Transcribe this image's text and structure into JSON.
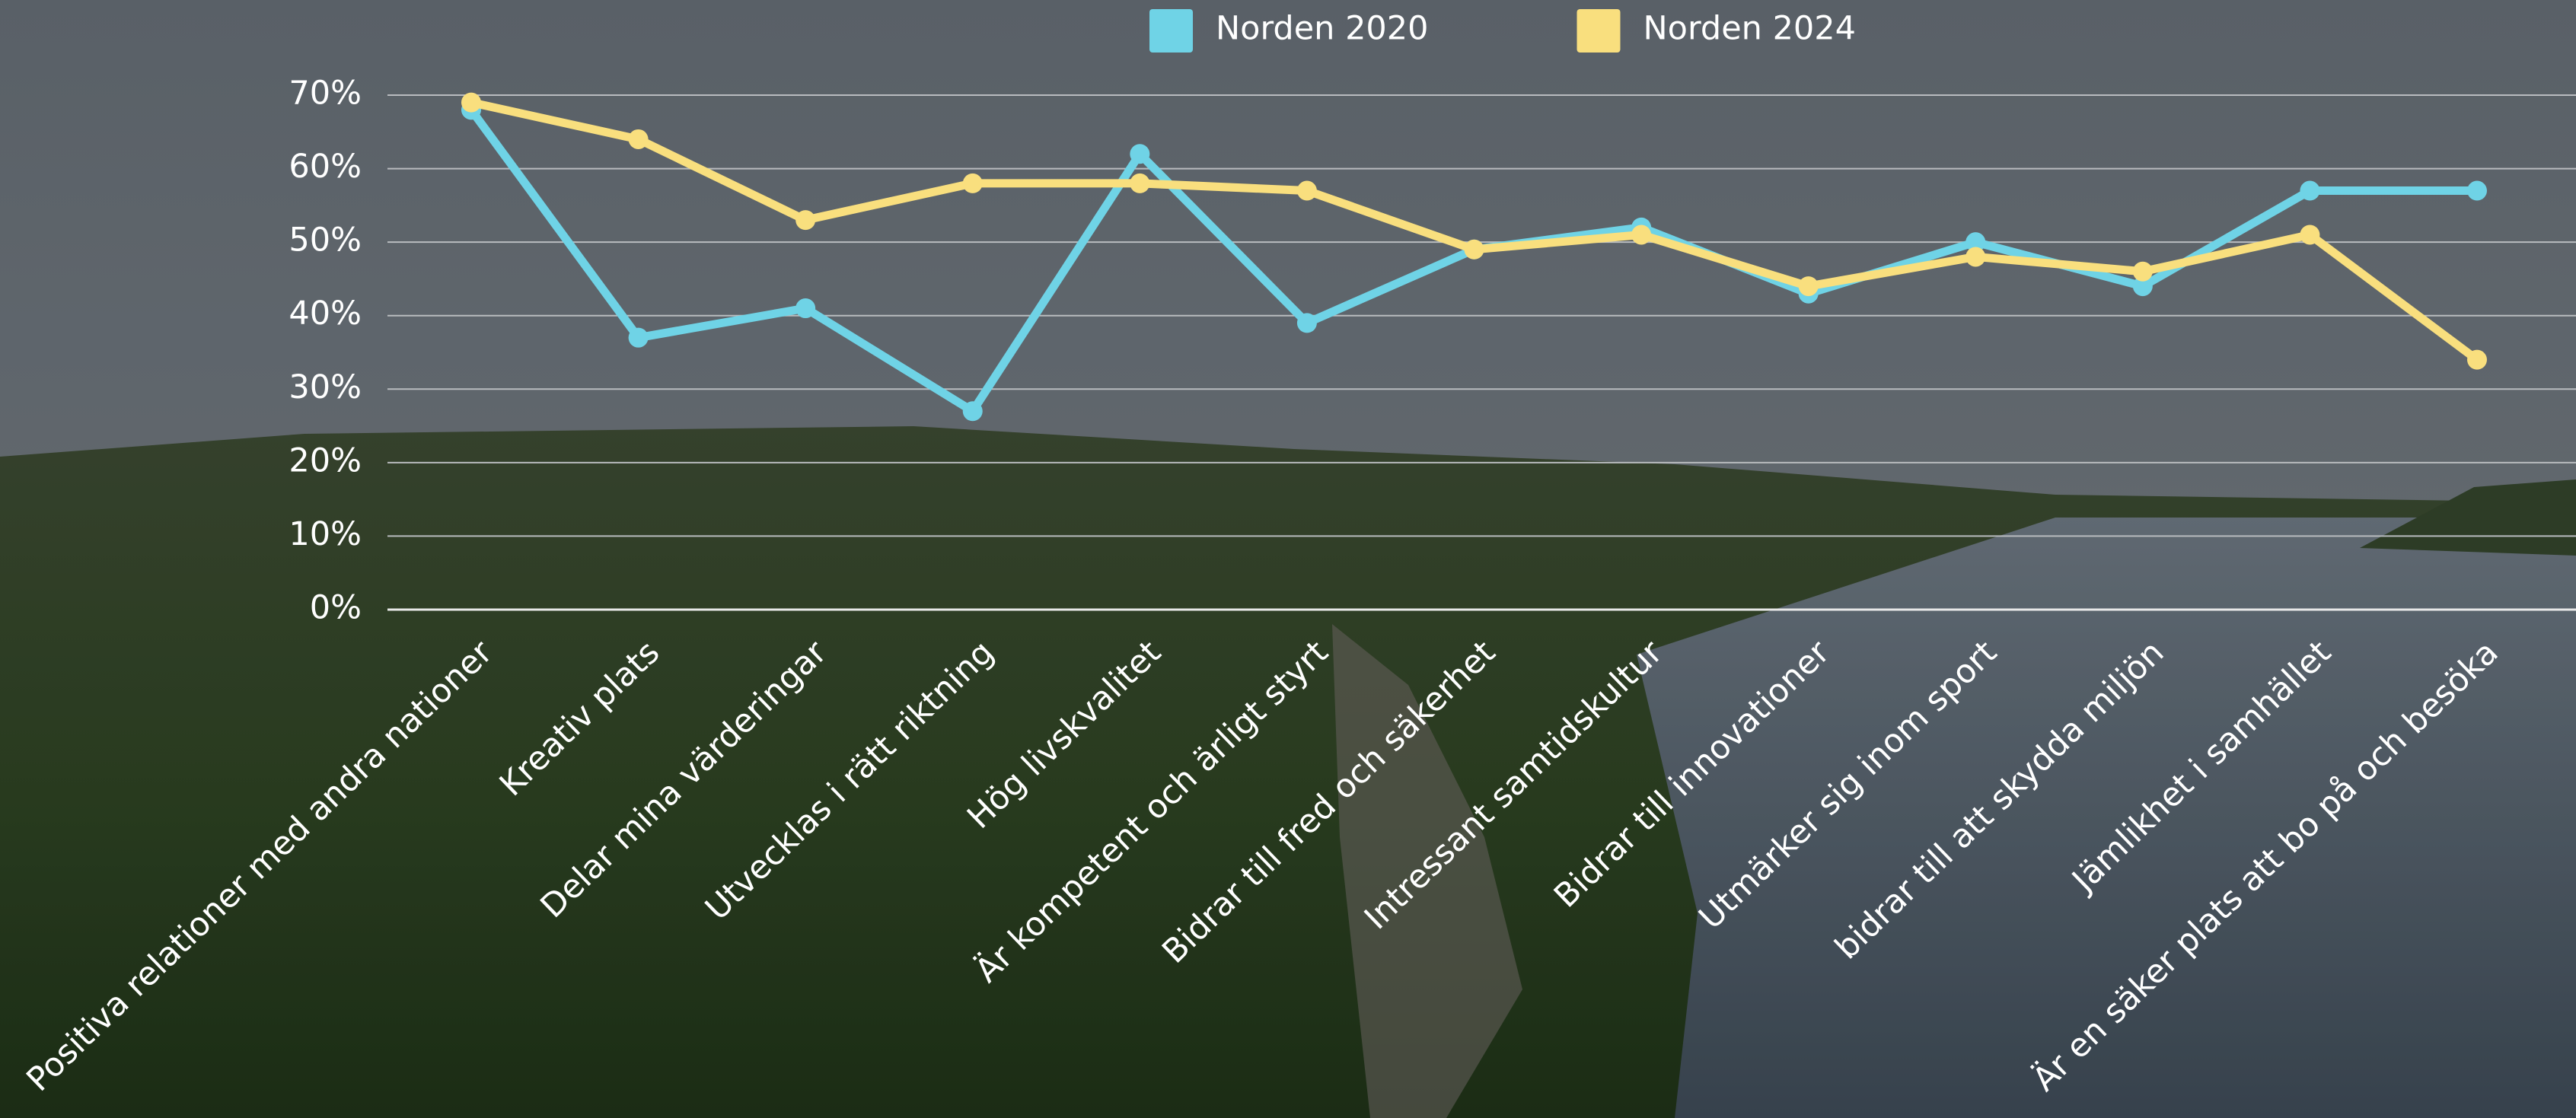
{
  "chart_data": {
    "type": "line",
    "categories": [
      "Positiva relationer med andra nationer",
      "Kreativ plats",
      "Delar mina värderingar",
      "Utvecklas i rätt riktning",
      "Hög livskvalitet",
      "Är kompetent och ärligt styrt",
      "Bidrar till fred och säkerhet",
      "Intressant samtidskultur",
      "Bidrar till innovationer",
      "Utmärker sig inom sport",
      "bidrar till att skydda miljön",
      "Jämlikhet i samhället",
      "Är en säker plats att bo på och besöka"
    ],
    "series": [
      {
        "name": "Norden 2020",
        "color": "#6fd3e6",
        "values": [
          68,
          37,
          41,
          27,
          62,
          39,
          49,
          52,
          43,
          50,
          44,
          57,
          57
        ]
      },
      {
        "name": "Norden 2024",
        "color": "#f9df7e",
        "values": [
          69,
          64,
          53,
          58,
          58,
          57,
          49,
          51,
          44,
          48,
          46,
          51,
          34
        ]
      }
    ],
    "ylim": [
      0,
      70
    ],
    "yticks": [
      {
        "value": 0,
        "label": "0%"
      },
      {
        "value": 10,
        "label": "10%"
      },
      {
        "value": 20,
        "label": "20%"
      },
      {
        "value": 30,
        "label": "30%"
      },
      {
        "value": 40,
        "label": "40%"
      },
      {
        "value": 50,
        "label": "50%"
      },
      {
        "value": 60,
        "label": "60%"
      },
      {
        "value": 70,
        "label": "70%"
      }
    ],
    "grid": true
  }
}
